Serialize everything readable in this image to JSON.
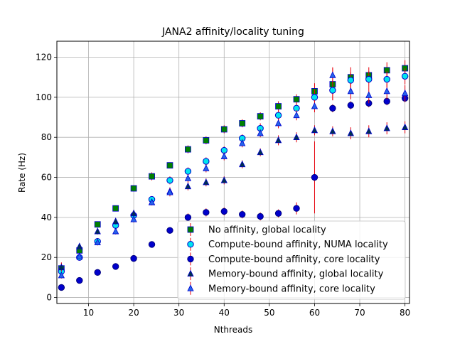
{
  "chart_data": {
    "type": "scatter",
    "title": "JANA2 affinity/locality tuning",
    "xlabel": "Nthreads",
    "ylabel": "Rate (Hz)",
    "xlim": [
      3,
      81
    ],
    "ylim": [
      -3,
      128
    ],
    "xticks": [
      10,
      20,
      30,
      40,
      50,
      60,
      70,
      80
    ],
    "yticks": [
      0,
      20,
      40,
      60,
      80,
      100,
      120
    ],
    "grid": true,
    "legend_position": "bottom-right",
    "x": [
      4,
      8,
      12,
      16,
      20,
      24,
      28,
      32,
      36,
      40,
      44,
      48,
      52,
      56,
      60,
      64,
      68,
      72,
      76,
      80
    ],
    "series": [
      {
        "name": "No affinity, global locality",
        "marker": "square",
        "color": "#008000",
        "edge": "#0000cc",
        "values": [
          14.5,
          23.5,
          36.5,
          44.5,
          54.5,
          60.5,
          66,
          74,
          78.5,
          84,
          87,
          90.5,
          95.5,
          99,
          103,
          106.5,
          110,
          111,
          113.5,
          114.5
        ],
        "errors": [
          3,
          1.5,
          1.5,
          1.5,
          1.5,
          2,
          1.5,
          2,
          2,
          2,
          2,
          2,
          2.5,
          2.5,
          4,
          8,
          5,
          4,
          4,
          4
        ]
      },
      {
        "name": "Compute-bound affinity, NUMA locality",
        "marker": "circle",
        "color": "#00e5ee",
        "edge": "#0000cc",
        "values": [
          13,
          20,
          28,
          36,
          41,
          49,
          58.5,
          63,
          68,
          73.5,
          79.5,
          84.5,
          91,
          94.5,
          100,
          103.5,
          108.5,
          109,
          109,
          110.5
        ],
        "errors": [
          2,
          1.5,
          1.5,
          1.5,
          1.5,
          1.5,
          2,
          2,
          2,
          2,
          2,
          2.5,
          2.5,
          3,
          4,
          5,
          4,
          4,
          4,
          4
        ]
      },
      {
        "name": "Compute-bound affinity, core locality",
        "marker": "circle",
        "color": "#0000cc",
        "edge": "#000080",
        "values": [
          5,
          8.5,
          12.5,
          15.5,
          19.5,
          26.5,
          33.5,
          40,
          42.5,
          43,
          41.5,
          40.5,
          42,
          44.5,
          60,
          94.5,
          96,
          97,
          98,
          99.5
        ],
        "errors": [
          1,
          1,
          1,
          1,
          1,
          1.5,
          1.5,
          2,
          2,
          2,
          2,
          2,
          2,
          3,
          18,
          2,
          2,
          2,
          2,
          2
        ]
      },
      {
        "name": "Memory-bound affinity, global locality",
        "marker": "triangle",
        "color": "#003050",
        "edge": "#0000cc",
        "values": [
          15,
          25.5,
          33,
          38,
          42,
          47.5,
          53,
          55.5,
          57.5,
          58.5,
          66.5,
          72.5,
          78.5,
          80,
          83.5,
          83,
          82,
          83,
          84.5,
          85
        ],
        "errors": [
          2,
          1.5,
          1.5,
          1.5,
          1.5,
          1.5,
          2,
          2,
          2,
          2,
          2,
          2,
          2.5,
          2.5,
          2.5,
          2.5,
          3,
          3,
          3,
          3
        ]
      },
      {
        "name": "Memory-bound affinity, core locality",
        "marker": "triangle",
        "color": "#2563eb",
        "edge": "#0000cc",
        "values": [
          11,
          20.5,
          27.5,
          33,
          39,
          47.5,
          52.5,
          59.5,
          64.5,
          70.5,
          77,
          82,
          87,
          91,
          95.5,
          111,
          103,
          101,
          103,
          102
        ],
        "errors": [
          1.5,
          1.5,
          1.5,
          1.5,
          1.5,
          1.5,
          2,
          2,
          2,
          2,
          2,
          2,
          2.5,
          2.5,
          3,
          4,
          4,
          4,
          4,
          4
        ]
      }
    ]
  }
}
